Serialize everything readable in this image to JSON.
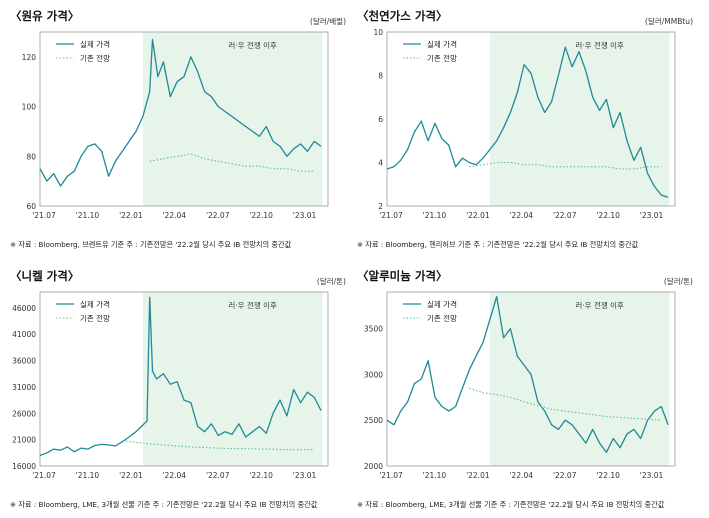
{
  "legend": {
    "actual": "실제 가격",
    "forecast": "기존 전망"
  },
  "colors": {
    "actual": "#1f8a96",
    "forecast": "#5fbfa3",
    "shade": "#e6f4ea",
    "frame": "#999999"
  },
  "chart_data": [
    {
      "type": "line",
      "title": "〈원유 가격〉",
      "unit": "(달러/배럴)",
      "note": "※ 자료 : Bloomberg, 브렌트유 기준  주 : 기존전망은 '22.2월 당시 주요 IB 전망치의 중간값",
      "shade_label": "러·우 전쟁 이후",
      "x_ticks": [
        "'21.07",
        "'21.10",
        "'22.01",
        "'22.04",
        "'22.07",
        "'22.10",
        "'23.01"
      ],
      "x_range": [
        0,
        21
      ],
      "shade_range": [
        7.5,
        20.6
      ],
      "ylim": [
        60,
        130
      ],
      "y_ticks": [
        60,
        80,
        100,
        120
      ],
      "series": [
        {
          "name": "실제 가격",
          "x": [
            0,
            0.5,
            1,
            1.5,
            2,
            2.5,
            3,
            3.5,
            4,
            4.5,
            5,
            5.5,
            6,
            6.5,
            7,
            7.5,
            8,
            8.2,
            8.6,
            9,
            9.5,
            10,
            10.5,
            11,
            11.5,
            12,
            12.5,
            13,
            13.5,
            14,
            14.5,
            15,
            15.5,
            16,
            16.5,
            17,
            17.5,
            18,
            18.5,
            19,
            19.5,
            20,
            20.5
          ],
          "values": [
            75,
            70,
            73,
            68,
            72,
            74,
            80,
            84,
            85,
            82,
            72,
            78,
            82,
            86,
            90,
            96,
            106,
            127,
            112,
            118,
            104,
            110,
            112,
            120,
            114,
            106,
            104,
            100,
            98,
            96,
            94,
            92,
            90,
            88,
            92,
            86,
            84,
            80,
            83,
            85,
            82,
            86,
            84
          ]
        },
        {
          "name": "기존 전망",
          "x": [
            8,
            9,
            10,
            11,
            12,
            13,
            14,
            15,
            16,
            17,
            18,
            19,
            20
          ],
          "values": [
            78,
            79,
            80,
            81,
            79,
            78,
            77,
            76,
            76,
            75,
            75,
            74,
            74
          ]
        }
      ]
    },
    {
      "type": "line",
      "title": "〈천연가스 가격〉",
      "unit": "(달러/MMBtu)",
      "note": "※ 자료 : Bloomberg, 헨리허브 기준  주 : 기존전망은 '22.2월 당시 주요 IB 전망치의 중간값",
      "shade_label": "러·우 전쟁 이후",
      "x_ticks": [
        "'21.07",
        "'21.10",
        "'22.01",
        "'22.04",
        "'22.07",
        "'22.10",
        "'23.01"
      ],
      "x_range": [
        0,
        21
      ],
      "shade_range": [
        7.5,
        20.6
      ],
      "ylim": [
        2,
        10
      ],
      "y_ticks": [
        2,
        4,
        6,
        8,
        10
      ],
      "series": [
        {
          "name": "실제 가격",
          "x": [
            0,
            0.5,
            1,
            1.5,
            2,
            2.5,
            3,
            3.5,
            4,
            4.5,
            5,
            5.5,
            6,
            6.5,
            7,
            7.5,
            8,
            8.5,
            9,
            9.5,
            10,
            10.5,
            11,
            11.5,
            12,
            12.5,
            13,
            13.5,
            14,
            14.5,
            15,
            15.5,
            16,
            16.5,
            17,
            17.5,
            18,
            18.5,
            19,
            19.5,
            20,
            20.5
          ],
          "values": [
            3.7,
            3.8,
            4.1,
            4.6,
            5.4,
            5.9,
            5.0,
            5.8,
            5.1,
            4.8,
            3.8,
            4.2,
            4.0,
            3.9,
            4.2,
            4.6,
            5.0,
            5.6,
            6.3,
            7.2,
            8.5,
            8.1,
            7.0,
            6.3,
            6.8,
            8.0,
            9.3,
            8.4,
            9.1,
            8.2,
            7.0,
            6.4,
            6.9,
            5.6,
            6.3,
            5.0,
            4.1,
            4.7,
            3.5,
            2.9,
            2.5,
            2.4
          ]
        },
        {
          "name": "기존 전망",
          "x": [
            6,
            7,
            8,
            9,
            10,
            11,
            12,
            13,
            14,
            15,
            16,
            17,
            18,
            19,
            20
          ],
          "values": [
            3.8,
            3.9,
            4.0,
            4.0,
            3.9,
            3.9,
            3.8,
            3.8,
            3.8,
            3.8,
            3.8,
            3.7,
            3.7,
            3.8,
            3.8
          ]
        }
      ]
    },
    {
      "type": "line",
      "title": "〈니켈 가격〉",
      "unit": "(달러/톤)",
      "note": "※ 자료 : Bloomberg, LME, 3개월 선물 기준  주 : 기존전망은 '22.2월 당시 주요 IB 전망치의 중간값",
      "shade_label": "러·우 전쟁 이후",
      "x_ticks": [
        "'21.07",
        "'21.10",
        "'22.01",
        "'22.04",
        "'22.07",
        "'22.10",
        "'23.01"
      ],
      "x_range": [
        0,
        21
      ],
      "shade_range": [
        7.5,
        20.6
      ],
      "ylim": [
        16000,
        49000
      ],
      "y_ticks": [
        16000,
        21000,
        26000,
        31000,
        36000,
        41000,
        46000
      ],
      "series": [
        {
          "name": "실제 가격",
          "x": [
            0,
            0.5,
            1,
            1.5,
            2,
            2.5,
            3,
            3.5,
            4,
            4.5,
            5,
            5.5,
            6,
            6.5,
            7,
            7.5,
            7.8,
            8.0,
            8.2,
            8.5,
            9,
            9.5,
            10,
            10.5,
            11,
            11.5,
            12,
            12.5,
            13,
            13.5,
            14,
            14.5,
            15,
            15.5,
            16,
            16.5,
            17,
            17.5,
            18,
            18.5,
            19,
            19.5,
            20,
            20.5
          ],
          "values": [
            18000,
            18500,
            19200,
            19000,
            19600,
            18700,
            19400,
            19200,
            19900,
            20100,
            20000,
            19800,
            20600,
            21500,
            22500,
            23800,
            24500,
            48000,
            34000,
            32500,
            33500,
            31500,
            32000,
            28500,
            28000,
            23500,
            22500,
            24000,
            21800,
            22500,
            22000,
            24000,
            21500,
            22500,
            23500,
            22200,
            26000,
            28500,
            25500,
            30500,
            28000,
            30000,
            29000,
            26500
          ]
        },
        {
          "name": "기존 전망",
          "x": [
            6,
            7,
            8,
            9,
            10,
            11,
            12,
            13,
            14,
            15,
            16,
            17,
            18,
            19,
            20
          ],
          "values": [
            20800,
            20500,
            20200,
            20000,
            19800,
            19600,
            19500,
            19400,
            19300,
            19300,
            19200,
            19200,
            19100,
            19100,
            19100
          ]
        }
      ]
    },
    {
      "type": "line",
      "title": "〈알루미늄 가격〉",
      "unit": "(달러/톤)",
      "note": "※ 자료 : Bloomberg, LME, 3개월 선물 기준  주 : 기존전망은 '22.2월 당시 주요 IB 전망치의 중간값",
      "shade_label": "러·우 전쟁 이후",
      "x_ticks": [
        "'21.07",
        "'21.10",
        "'22.01",
        "'22.04",
        "'22.07",
        "'22.10",
        "'23.01"
      ],
      "x_range": [
        0,
        21
      ],
      "shade_range": [
        7.5,
        20.6
      ],
      "ylim": [
        2000,
        3900
      ],
      "y_ticks": [
        2000,
        2500,
        3000,
        3500
      ],
      "series": [
        {
          "name": "실제 가격",
          "x": [
            0,
            0.5,
            1,
            1.5,
            2,
            2.5,
            3,
            3.5,
            4,
            4.5,
            5,
            5.5,
            6,
            6.5,
            7,
            7.5,
            8,
            8.5,
            9,
            9.5,
            10,
            10.5,
            11,
            11.5,
            12,
            12.5,
            13,
            13.5,
            14,
            14.5,
            15,
            15.5,
            16,
            16.5,
            17,
            17.5,
            18,
            18.5,
            19,
            19.5,
            20,
            20.5
          ],
          "values": [
            2500,
            2450,
            2600,
            2700,
            2900,
            2950,
            3150,
            2750,
            2650,
            2600,
            2650,
            2850,
            3050,
            3200,
            3350,
            3600,
            3850,
            3400,
            3500,
            3200,
            3100,
            3000,
            2700,
            2600,
            2450,
            2400,
            2500,
            2450,
            2350,
            2250,
            2400,
            2250,
            2150,
            2300,
            2200,
            2350,
            2400,
            2300,
            2500,
            2600,
            2650,
            2450
          ]
        },
        {
          "name": "기존 전망",
          "x": [
            6,
            7,
            8,
            9,
            10,
            11,
            12,
            13,
            14,
            15,
            16,
            17,
            18,
            19,
            20
          ],
          "values": [
            2850,
            2800,
            2780,
            2750,
            2700,
            2660,
            2620,
            2600,
            2580,
            2560,
            2540,
            2530,
            2520,
            2510,
            2500
          ]
        }
      ]
    }
  ]
}
